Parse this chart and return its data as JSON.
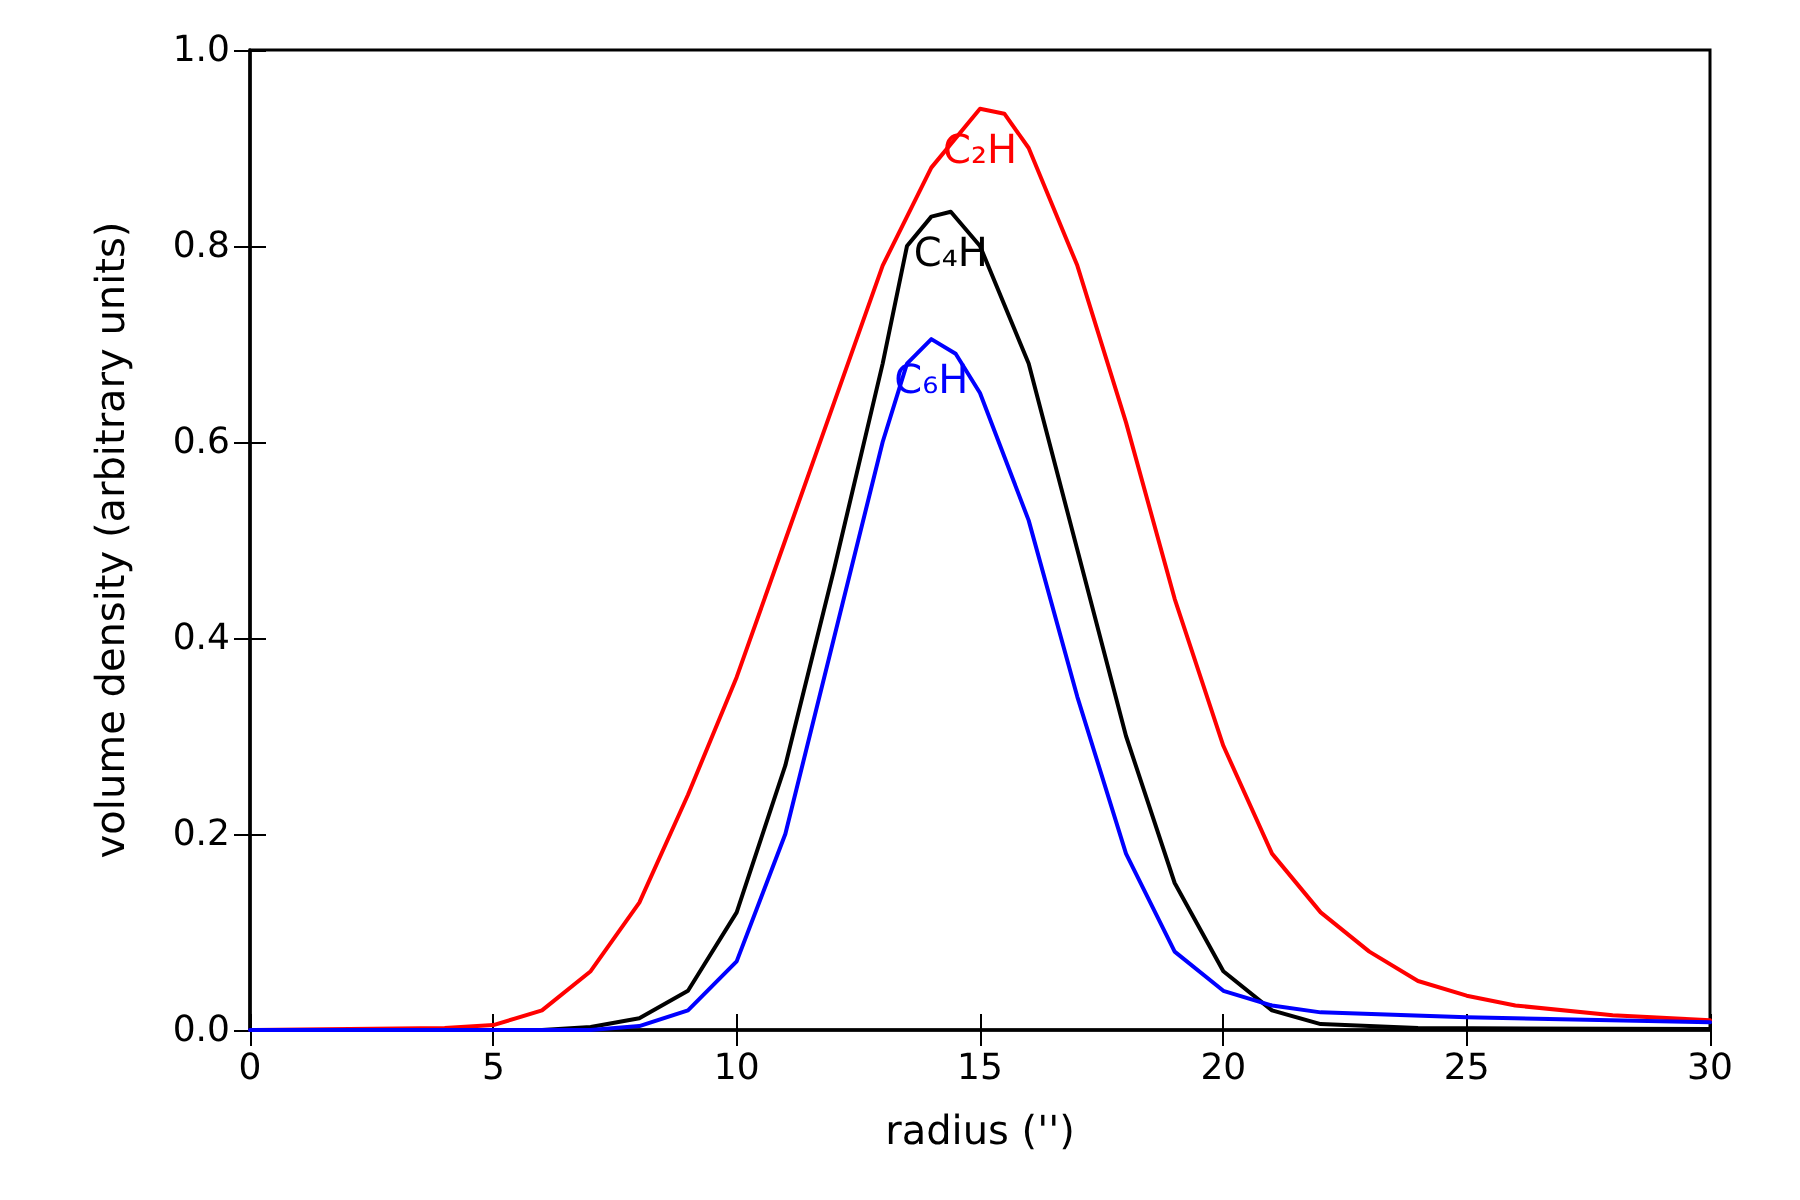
{
  "chart_data": {
    "type": "line",
    "xlabel": "radius ('')",
    "ylabel": "volume density (arbitrary units)",
    "xlim": [
      0,
      30
    ],
    "xticks": [
      0,
      5,
      10,
      15,
      20,
      25,
      30
    ],
    "ylim": [
      0,
      1.0
    ],
    "yticks": [
      {
        "value": 0,
        "label": "0.0"
      },
      {
        "value": 0.2,
        "label": "0.2"
      },
      {
        "value": 0.4,
        "label": "0.4"
      },
      {
        "value": 0.6,
        "label": "0.6"
      },
      {
        "value": 0.8,
        "label": "0.8"
      },
      {
        "value": 1.0,
        "label": "1.0"
      }
    ],
    "grid": false,
    "legend": false,
    "marker": "none",
    "line_style": "solid",
    "series": [
      {
        "name": "C₂H",
        "color": "#ff0000",
        "x": [
          0,
          4,
          5,
          6,
          7,
          8,
          9,
          10,
          11,
          12,
          13,
          14,
          15,
          15.5,
          16,
          17,
          18,
          19,
          20,
          21,
          22,
          23,
          24,
          25,
          26,
          28,
          30
        ],
        "values": [
          0,
          0.002,
          0.005,
          0.02,
          0.06,
          0.13,
          0.24,
          0.36,
          0.5,
          0.64,
          0.78,
          0.88,
          0.94,
          0.935,
          0.9,
          0.78,
          0.62,
          0.44,
          0.29,
          0.18,
          0.12,
          0.08,
          0.05,
          0.035,
          0.025,
          0.015,
          0.01
        ]
      },
      {
        "name": "C₄H",
        "color": "#000000",
        "x": [
          0,
          6,
          7,
          8,
          9,
          10,
          11,
          12,
          13,
          13.5,
          14,
          14.4,
          15,
          16,
          17,
          18,
          19,
          20,
          21,
          22,
          24,
          30
        ],
        "values": [
          0,
          0,
          0.003,
          0.012,
          0.04,
          0.12,
          0.27,
          0.47,
          0.68,
          0.8,
          0.83,
          0.835,
          0.8,
          0.68,
          0.49,
          0.3,
          0.15,
          0.06,
          0.02,
          0.006,
          0.002,
          0.001
        ]
      },
      {
        "name": "C₆H",
        "color": "#0000ff",
        "x": [
          0,
          7,
          8,
          9,
          10,
          11,
          12,
          13,
          13.5,
          14,
          14.5,
          15,
          16,
          17,
          18,
          19,
          20,
          21,
          22,
          25,
          30
        ],
        "values": [
          0,
          0,
          0.004,
          0.02,
          0.07,
          0.2,
          0.4,
          0.6,
          0.68,
          0.705,
          0.69,
          0.65,
          0.52,
          0.34,
          0.18,
          0.08,
          0.04,
          0.025,
          0.018,
          0.013,
          0.008
        ]
      }
    ]
  }
}
